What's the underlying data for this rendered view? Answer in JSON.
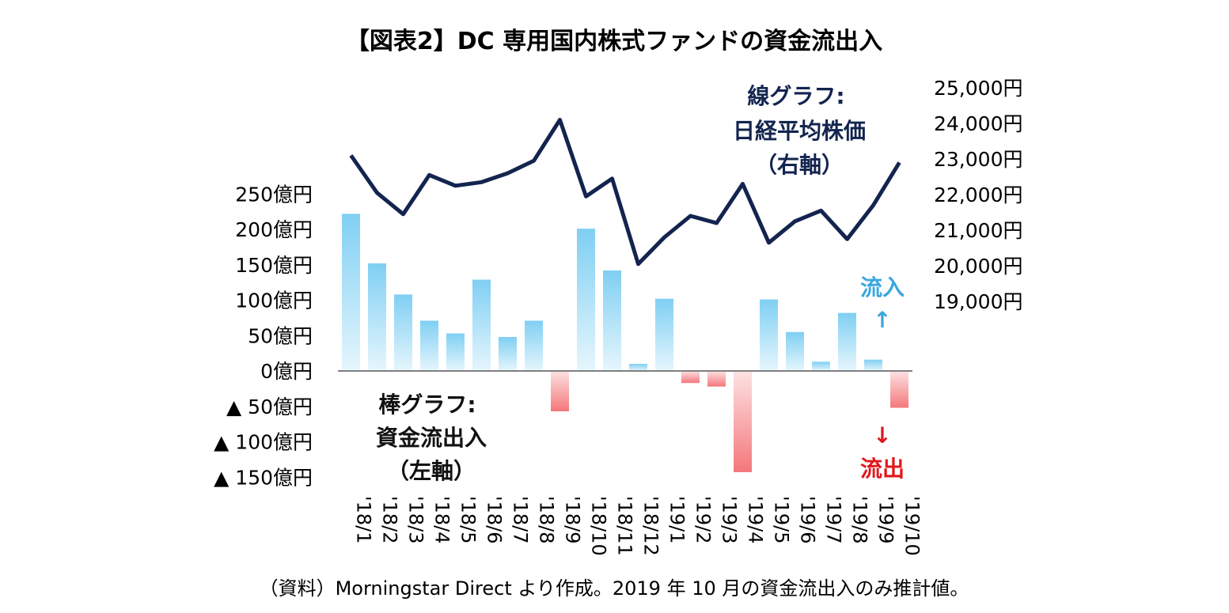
{
  "title": "【図表2】DC 専用国内株式ファンドの資金流出入",
  "note": "（資料）Morningstar Direct より作成。2019 年 10 月の資金流出入のみ推計値。",
  "chart_data": {
    "type": "bar+line",
    "categories": [
      "'18/1",
      "'18/2",
      "'18/3",
      "'18/4",
      "'18/5",
      "'18/6",
      "'18/7",
      "'18/8",
      "'18/9",
      "'18/10",
      "'18/11",
      "'18/12",
      "'19/1",
      "'19/2",
      "'19/3",
      "'19/4",
      "'19/5",
      "'19/6",
      "'19/7",
      "'19/8",
      "'19/9",
      "'19/10"
    ],
    "bar_series": {
      "axis": "left",
      "values": [
        222,
        152,
        108,
        71,
        53,
        129,
        48,
        71,
        -57,
        201,
        142,
        10,
        102,
        -17,
        -22,
        -143,
        101,
        55,
        13,
        82,
        16,
        -52
      ]
    },
    "line_series": {
      "axis": "right",
      "values": [
        23100,
        22050,
        21450,
        22550,
        22250,
        22350,
        22600,
        22950,
        24100,
        21950,
        22450,
        20050,
        20800,
        21400,
        21200,
        22300,
        20650,
        21250,
        21550,
        20750,
        21700,
        22900
      ]
    },
    "left_axis": {
      "ylim": [
        -150,
        250
      ],
      "ticks": [
        250,
        200,
        150,
        100,
        50,
        0,
        -50,
        -100,
        -150
      ],
      "tick_labels": [
        "250億円",
        "200億円",
        "150億円",
        "100億円",
        "50億円",
        "0億円",
        "▲ 50億円",
        "▲ 100億円",
        "▲ 150億円"
      ]
    },
    "right_axis": {
      "ylim": [
        19000,
        25000
      ],
      "ticks": [
        25000,
        24000,
        23000,
        22000,
        21000,
        20000,
        19000
      ],
      "tick_labels": [
        "25,000円",
        "24,000円",
        "23,000円",
        "22,000円",
        "21,000円",
        "20,000円",
        "19,000円"
      ]
    },
    "annotations": {
      "line_label": [
        "線グラフ:",
        "日経平均株価",
        "（右軸）"
      ],
      "bar_label": [
        "棒グラフ:",
        "資金流出入",
        "（左軸）"
      ],
      "inflow": "流入",
      "inflow_arrow": "↑",
      "outflow": "流出",
      "outflow_arrow": "↓"
    },
    "colors": {
      "bar_positive": "#7fcff3",
      "bar_negative": "#f4777b",
      "line": "#13244f",
      "zero_line": "#808080"
    }
  }
}
